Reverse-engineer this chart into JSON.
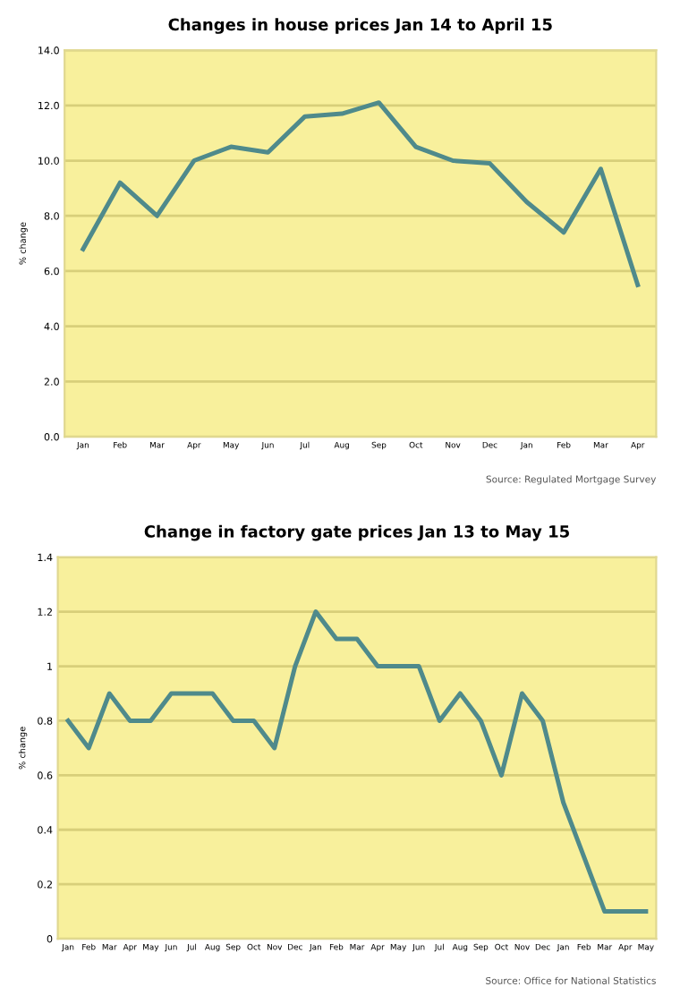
{
  "chart_data": [
    {
      "type": "line",
      "title": "Changes in house prices Jan 14 to April 15",
      "ylabel": "% change",
      "categories": [
        "Jan",
        "Feb",
        "Mar",
        "Apr",
        "May",
        "Jun",
        "Jul",
        "Aug",
        "Sep",
        "Oct",
        "Nov",
        "Dec",
        "Jan",
        "Feb",
        "Mar",
        "Apr"
      ],
      "series": [
        {
          "color": "#4f8a8b",
          "values": [
            6.8,
            9.2,
            8.0,
            10.0,
            10.5,
            10.3,
            11.6,
            11.7,
            12.1,
            10.5,
            10.0,
            9.9,
            8.5,
            7.4,
            9.7,
            5.5
          ]
        }
      ],
      "ylim": [
        0,
        14
      ],
      "yticks": [
        {
          "value": 0,
          "label": "0.0"
        },
        {
          "value": 2,
          "label": "2.0"
        },
        {
          "value": 4,
          "label": "4.0"
        },
        {
          "value": 6,
          "label": "6.0"
        },
        {
          "value": 8,
          "label": "8.0"
        },
        {
          "value": 10,
          "label": "10.0"
        },
        {
          "value": 12,
          "label": "12.0"
        },
        {
          "value": 14,
          "label": "14.0"
        }
      ],
      "grid": "y",
      "marker": "none",
      "line_style": "solid",
      "annotations": [
        "Source: Regulated Mortgage Survey"
      ]
    },
    {
      "type": "line",
      "title": "Change in factory gate prices Jan 13 to May 15",
      "ylabel": "% change",
      "categories": [
        "Jan",
        "Feb",
        "Mar",
        "Apr",
        "May",
        "Jun",
        "Jul",
        "Aug",
        "Sep",
        "Oct",
        "Nov",
        "Dec",
        "Jan",
        "Feb",
        "Mar",
        "Apr",
        "May",
        "Jun",
        "Jul",
        "Aug",
        "Sep",
        "Oct",
        "Nov",
        "Dec",
        "Jan",
        "Feb",
        "Mar",
        "Apr",
        "May"
      ],
      "series": [
        {
          "color": "#4f8a8b",
          "values": [
            0.8,
            0.7,
            0.9,
            0.8,
            0.8,
            0.9,
            0.9,
            0.9,
            0.8,
            0.8,
            0.7,
            1.0,
            1.2,
            1.1,
            1.1,
            1.0,
            1.0,
            1.0,
            0.8,
            0.9,
            0.8,
            0.6,
            0.9,
            0.8,
            0.5,
            0.3,
            0.1,
            0.1,
            0.1
          ]
        }
      ],
      "ylim": [
        0,
        1.4
      ],
      "yticks": [
        0,
        0.2,
        0.4,
        0.6,
        0.8,
        1,
        1.2,
        1.4
      ],
      "grid": "y",
      "marker": "none",
      "line_style": "solid",
      "annotations": [
        "Source: Office for National Statistics"
      ]
    }
  ]
}
